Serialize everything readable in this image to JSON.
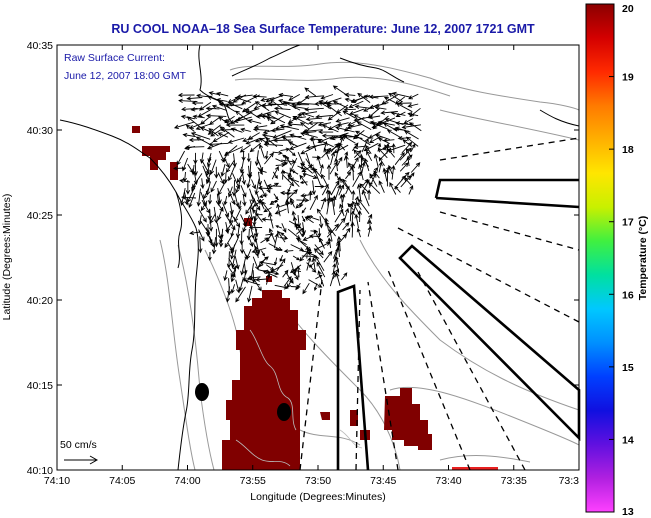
{
  "title": "RU COOL   NOAA–18  Sea Surface Temperature:  June 12, 2007 1721 GMT",
  "legend": {
    "line1": "Raw Surface Current:",
    "line2": "June 12, 2007 18:00 GMT"
  },
  "scale_label": "50 cm/s",
  "xaxis": {
    "label": "Longitude (Degrees:Minutes)",
    "ticks": [
      "74:10",
      "74:05",
      "74:00",
      "73:55",
      "73:50",
      "73:45",
      "73:40",
      "73:35",
      "73:3"
    ]
  },
  "yaxis": {
    "label": "Latitude (Degrees:Minutes)",
    "ticks": [
      "40:35",
      "40:30",
      "40:25",
      "40:20",
      "40:15",
      "40:10"
    ]
  },
  "colorbar": {
    "label": "Temperature (°C)",
    "ticks": [
      "20",
      "19",
      "18",
      "17",
      "16",
      "15",
      "14",
      "13"
    ],
    "colors": [
      "#8b0000",
      "#d40000",
      "#ff2a00",
      "#ff7a00",
      "#ffb000",
      "#ffe600",
      "#c8f000",
      "#40f040",
      "#00e0a0",
      "#00c8ff",
      "#0090ff",
      "#0040ff",
      "#1010e0",
      "#6010e0",
      "#b020e0",
      "#ff40ff"
    ]
  },
  "palette": {
    "sst": "#800000",
    "title": "#1a1aa8",
    "coast": "#000000",
    "bathymetry": "#999999"
  }
}
